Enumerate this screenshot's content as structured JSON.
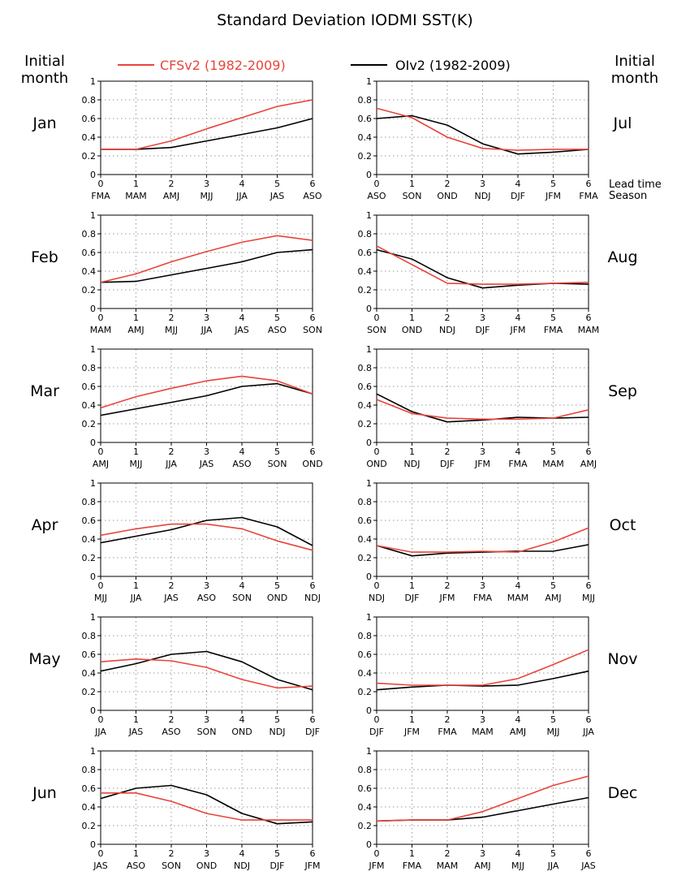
{
  "title": "Standard Deviation IODMI SST(K)",
  "left_header": [
    "Initial",
    "month"
  ],
  "right_header": [
    "Initial",
    "month"
  ],
  "lead_label": [
    "Lead time",
    "Season"
  ],
  "legend": [
    {
      "label": "CFSv2 (1982-2009)",
      "color": "#e8443a"
    },
    {
      "label": "OIv2 (1982-2009)",
      "color": "#000000"
    }
  ],
  "chart_data": [
    {
      "type": "line",
      "initial_month": "Jan",
      "x": [
        0,
        1,
        2,
        3,
        4,
        5,
        6
      ],
      "seasons": [
        "FMA",
        "MAM",
        "AMJ",
        "MJJ",
        "JJA",
        "JAS",
        "ASO"
      ],
      "ylim": [
        0,
        1
      ],
      "yticks": [
        0,
        0.2,
        0.4,
        0.6,
        0.8,
        1
      ],
      "series": [
        {
          "name": "CFSv2 (1982-2009)",
          "values": [
            0.27,
            0.27,
            0.36,
            0.49,
            0.61,
            0.73,
            0.8
          ]
        },
        {
          "name": "OIv2 (1982-2009)",
          "values": [
            0.27,
            0.27,
            0.29,
            0.36,
            0.43,
            0.5,
            0.6
          ]
        }
      ]
    },
    {
      "type": "line",
      "initial_month": "Jul",
      "x": [
        0,
        1,
        2,
        3,
        4,
        5,
        6
      ],
      "seasons": [
        "ASO",
        "SON",
        "OND",
        "NDJ",
        "DJF",
        "JFM",
        "FMA"
      ],
      "ylim": [
        0,
        1
      ],
      "yticks": [
        0,
        0.2,
        0.4,
        0.6,
        0.8,
        1
      ],
      "series": [
        {
          "name": "CFSv2 (1982-2009)",
          "values": [
            0.71,
            0.61,
            0.4,
            0.28,
            0.26,
            0.27,
            0.27
          ]
        },
        {
          "name": "OIv2 (1982-2009)",
          "values": [
            0.6,
            0.63,
            0.53,
            0.33,
            0.22,
            0.24,
            0.27
          ]
        }
      ]
    },
    {
      "type": "line",
      "initial_month": "Feb",
      "x": [
        0,
        1,
        2,
        3,
        4,
        5,
        6
      ],
      "seasons": [
        "MAM",
        "AMJ",
        "MJJ",
        "JJA",
        "JAS",
        "ASO",
        "SON"
      ],
      "ylim": [
        0,
        1
      ],
      "yticks": [
        0,
        0.2,
        0.4,
        0.6,
        0.8,
        1
      ],
      "series": [
        {
          "name": "CFSv2 (1982-2009)",
          "values": [
            0.28,
            0.37,
            0.5,
            0.61,
            0.71,
            0.78,
            0.73
          ]
        },
        {
          "name": "OIv2 (1982-2009)",
          "values": [
            0.28,
            0.29,
            0.36,
            0.43,
            0.5,
            0.6,
            0.63
          ]
        }
      ]
    },
    {
      "type": "line",
      "initial_month": "Aug",
      "x": [
        0,
        1,
        2,
        3,
        4,
        5,
        6
      ],
      "seasons": [
        "SON",
        "OND",
        "NDJ",
        "DJF",
        "JFM",
        "FMA",
        "MAM"
      ],
      "ylim": [
        0,
        1
      ],
      "yticks": [
        0,
        0.2,
        0.4,
        0.6,
        0.8,
        1
      ],
      "series": [
        {
          "name": "CFSv2 (1982-2009)",
          "values": [
            0.67,
            0.47,
            0.27,
            0.26,
            0.26,
            0.27,
            0.28
          ]
        },
        {
          "name": "OIv2 (1982-2009)",
          "values": [
            0.63,
            0.53,
            0.33,
            0.22,
            0.25,
            0.27,
            0.26
          ]
        }
      ]
    },
    {
      "type": "line",
      "initial_month": "Mar",
      "x": [
        0,
        1,
        2,
        3,
        4,
        5,
        6
      ],
      "seasons": [
        "AMJ",
        "MJJ",
        "JJA",
        "JAS",
        "ASO",
        "SON",
        "OND"
      ],
      "ylim": [
        0,
        1
      ],
      "yticks": [
        0,
        0.2,
        0.4,
        0.6,
        0.8,
        1
      ],
      "series": [
        {
          "name": "CFSv2 (1982-2009)",
          "values": [
            0.37,
            0.49,
            0.58,
            0.66,
            0.71,
            0.66,
            0.52
          ]
        },
        {
          "name": "OIv2 (1982-2009)",
          "values": [
            0.29,
            0.36,
            0.43,
            0.5,
            0.6,
            0.63,
            0.52
          ]
        }
      ]
    },
    {
      "type": "line",
      "initial_month": "Sep",
      "x": [
        0,
        1,
        2,
        3,
        4,
        5,
        6
      ],
      "seasons": [
        "OND",
        "NDJ",
        "DJF",
        "JFM",
        "FMA",
        "MAM",
        "AMJ"
      ],
      "ylim": [
        0,
        1
      ],
      "yticks": [
        0,
        0.2,
        0.4,
        0.6,
        0.8,
        1
      ],
      "series": [
        {
          "name": "CFSv2 (1982-2009)",
          "values": [
            0.46,
            0.31,
            0.26,
            0.25,
            0.25,
            0.26,
            0.35
          ]
        },
        {
          "name": "OIv2 (1982-2009)",
          "values": [
            0.52,
            0.33,
            0.22,
            0.24,
            0.27,
            0.26,
            0.27
          ]
        }
      ]
    },
    {
      "type": "line",
      "initial_month": "Apr",
      "x": [
        0,
        1,
        2,
        3,
        4,
        5,
        6
      ],
      "seasons": [
        "MJJ",
        "JJA",
        "JAS",
        "ASO",
        "SON",
        "OND",
        "NDJ"
      ],
      "ylim": [
        0,
        1
      ],
      "yticks": [
        0,
        0.2,
        0.4,
        0.6,
        0.8,
        1
      ],
      "series": [
        {
          "name": "CFSv2 (1982-2009)",
          "values": [
            0.44,
            0.51,
            0.56,
            0.56,
            0.51,
            0.38,
            0.28
          ]
        },
        {
          "name": "OIv2 (1982-2009)",
          "values": [
            0.36,
            0.43,
            0.5,
            0.6,
            0.63,
            0.53,
            0.33
          ]
        }
      ]
    },
    {
      "type": "line",
      "initial_month": "Oct",
      "x": [
        0,
        1,
        2,
        3,
        4,
        5,
        6
      ],
      "seasons": [
        "NDJ",
        "DJF",
        "JFM",
        "FMA",
        "MAM",
        "AMJ",
        "MJJ"
      ],
      "ylim": [
        0,
        1
      ],
      "yticks": [
        0,
        0.2,
        0.4,
        0.6,
        0.8,
        1
      ],
      "series": [
        {
          "name": "CFSv2 (1982-2009)",
          "values": [
            0.33,
            0.26,
            0.26,
            0.27,
            0.26,
            0.37,
            0.52
          ]
        },
        {
          "name": "OIv2 (1982-2009)",
          "values": [
            0.33,
            0.22,
            0.25,
            0.26,
            0.27,
            0.27,
            0.34
          ]
        }
      ]
    },
    {
      "type": "line",
      "initial_month": "May",
      "x": [
        0,
        1,
        2,
        3,
        4,
        5,
        6
      ],
      "seasons": [
        "JJA",
        "JAS",
        "ASO",
        "SON",
        "OND",
        "NDJ",
        "DJF"
      ],
      "ylim": [
        0,
        1
      ],
      "yticks": [
        0,
        0.2,
        0.4,
        0.6,
        0.8,
        1
      ],
      "series": [
        {
          "name": "CFSv2 (1982-2009)",
          "values": [
            0.52,
            0.55,
            0.53,
            0.46,
            0.33,
            0.24,
            0.26
          ]
        },
        {
          "name": "OIv2 (1982-2009)",
          "values": [
            0.42,
            0.5,
            0.6,
            0.63,
            0.52,
            0.33,
            0.22
          ]
        }
      ]
    },
    {
      "type": "line",
      "initial_month": "Nov",
      "x": [
        0,
        1,
        2,
        3,
        4,
        5,
        6
      ],
      "seasons": [
        "DJF",
        "JFM",
        "FMA",
        "MAM",
        "AMJ",
        "MJJ",
        "JJA"
      ],
      "ylim": [
        0,
        1
      ],
      "yticks": [
        0,
        0.2,
        0.4,
        0.6,
        0.8,
        1
      ],
      "series": [
        {
          "name": "CFSv2 (1982-2009)",
          "values": [
            0.29,
            0.27,
            0.27,
            0.27,
            0.34,
            0.49,
            0.65
          ]
        },
        {
          "name": "OIv2 (1982-2009)",
          "values": [
            0.22,
            0.25,
            0.27,
            0.26,
            0.27,
            0.34,
            0.42
          ]
        }
      ]
    },
    {
      "type": "line",
      "initial_month": "Jun",
      "x": [
        0,
        1,
        2,
        3,
        4,
        5,
        6
      ],
      "seasons": [
        "JAS",
        "ASO",
        "SON",
        "OND",
        "NDJ",
        "DJF",
        "JFM"
      ],
      "ylim": [
        0,
        1
      ],
      "yticks": [
        0,
        0.2,
        0.4,
        0.6,
        0.8,
        1
      ],
      "series": [
        {
          "name": "CFSv2 (1982-2009)",
          "values": [
            0.55,
            0.55,
            0.46,
            0.33,
            0.26,
            0.26,
            0.26
          ]
        },
        {
          "name": "OIv2 (1982-2009)",
          "values": [
            0.49,
            0.6,
            0.63,
            0.53,
            0.33,
            0.22,
            0.24
          ]
        }
      ]
    },
    {
      "type": "line",
      "initial_month": "Dec",
      "x": [
        0,
        1,
        2,
        3,
        4,
        5,
        6
      ],
      "seasons": [
        "JFM",
        "FMA",
        "MAM",
        "AMJ",
        "MJJ",
        "JJA",
        "JAS"
      ],
      "ylim": [
        0,
        1
      ],
      "yticks": [
        0,
        0.2,
        0.4,
        0.6,
        0.8,
        1
      ],
      "series": [
        {
          "name": "CFSv2 (1982-2009)",
          "values": [
            0.25,
            0.26,
            0.26,
            0.35,
            0.49,
            0.63,
            0.73
          ]
        },
        {
          "name": "OIv2 (1982-2009)",
          "values": [
            0.25,
            0.26,
            0.26,
            0.29,
            0.36,
            0.43,
            0.5
          ]
        }
      ]
    }
  ]
}
